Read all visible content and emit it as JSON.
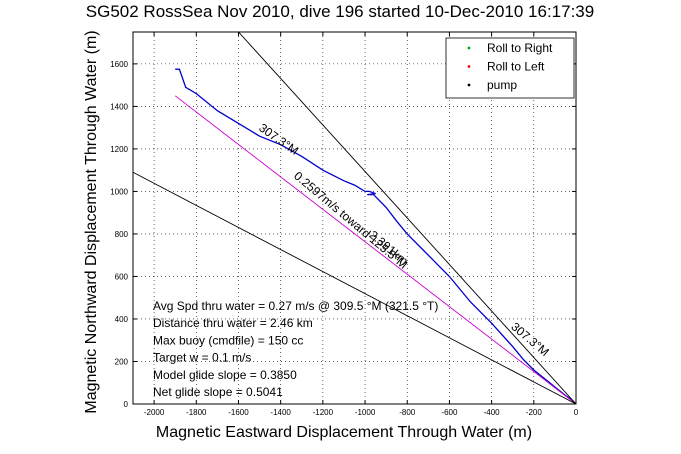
{
  "chart_data": {
    "type": "line",
    "title": "SG502 RossSea Nov 2010, dive 196 started 10-Dec-2010 16:17:39",
    "xlabel": "Magnetic Eastward Displacement Through Water (m)",
    "ylabel": "Magnetic Northward Displacement Through Water (m)",
    "xlim": [
      -2100,
      0
    ],
    "ylim": [
      0,
      1750
    ],
    "x_ticks": [
      "-2000",
      "-1800",
      "-1600",
      "-1400",
      "-1200",
      "-1000",
      "-800",
      "-600",
      "-400",
      "-200",
      "0"
    ],
    "y_ticks": [
      "0",
      "200",
      "400",
      "600",
      "800",
      "1000",
      "1200",
      "1400",
      "1600"
    ],
    "grid": true,
    "legend_position": "top-right",
    "legend": [
      {
        "label": "Roll to Right",
        "color": "#00aa00",
        "marker": "."
      },
      {
        "label": "Roll to Left",
        "color": "#ff0000",
        "marker": "."
      },
      {
        "label": "pump",
        "color": "#000000",
        "marker": "."
      }
    ],
    "series": [
      {
        "color": "#0000cc",
        "x": [
          -1900,
          -1880,
          -1850,
          -1800,
          -1700,
          -1600,
          -1500,
          -1400,
          -1300,
          -1200,
          -1100,
          -1050,
          -1000,
          -980,
          -950,
          -990,
          -960,
          -900,
          -850,
          -800,
          -700,
          -600,
          -500,
          -400,
          -300,
          -250,
          -200,
          -150,
          -100,
          -50,
          -20,
          0
        ],
        "y": [
          1575,
          1575,
          1490,
          1460,
          1380,
          1320,
          1260,
          1220,
          1165,
          1100,
          1050,
          1030,
          1000,
          1000,
          990,
          985,
          985,
          925,
          860,
          800,
          700,
          600,
          480,
          380,
          270,
          210,
          160,
          120,
          80,
          40,
          20,
          0
        ]
      },
      {
        "color": "#cc00cc",
        "x": [
          -1900,
          0
        ],
        "y": [
          1450,
          0
        ]
      },
      {
        "color": "#000000",
        "x": [
          -2100,
          0
        ],
        "y": [
          1090,
          0
        ]
      },
      {
        "color": "#000000",
        "x": [
          -1600,
          0
        ],
        "y": [
          1750,
          0
        ]
      }
    ],
    "annotations": [
      {
        "text": "307.3°M",
        "x": -1420,
        "y": 1230,
        "rotate": 35
      },
      {
        "text": "0.2597m/s toward 125.5°M",
        "x": -1080,
        "y": 850,
        "rotate": 40
      },
      {
        "text": "2.391km",
        "x": -900,
        "y": 720,
        "rotate": 40
      },
      {
        "text": "307.3°M",
        "x": -230,
        "y": 290,
        "rotate": 40
      }
    ],
    "stats": [
      "Avg Spd thru water =  0.27 m/s @ 309.5 °M (321.5 °T)",
      "Distance thru water =  2.46 km",
      "Max buoy (cmdfile) = 150 cc",
      "Target w = 0.1 m/s",
      "Model glide slope = 0.3850",
      "Net glide slope = 0.5041"
    ]
  }
}
